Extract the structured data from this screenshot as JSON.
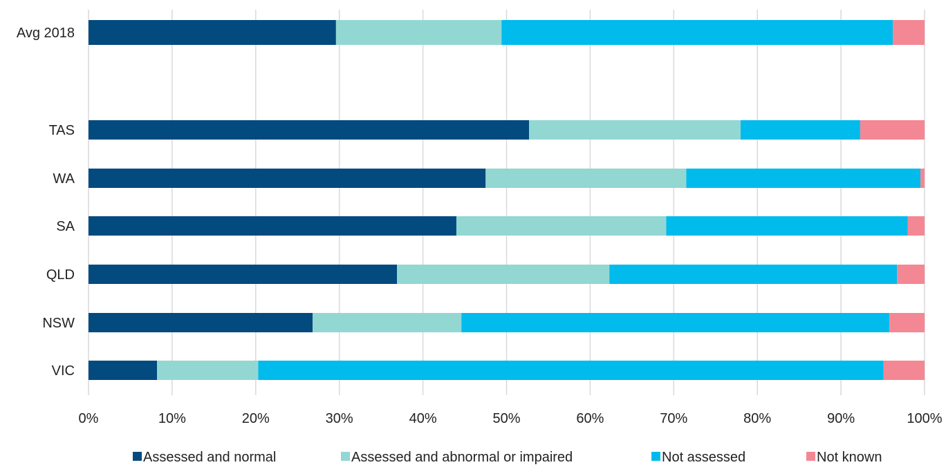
{
  "chart_data": {
    "type": "bar",
    "orientation": "horizontal",
    "stacked": "percent",
    "title": "",
    "xlabel": "",
    "ylabel": "",
    "xlim": [
      0,
      100
    ],
    "x_ticks": [
      "0%",
      "10%",
      "20%",
      "30%",
      "40%",
      "50%",
      "60%",
      "70%",
      "80%",
      "90%",
      "100%"
    ],
    "grid": "vertical",
    "legend_position": "bottom",
    "categories": [
      "Avg 2018",
      "TAS",
      "WA",
      "SA",
      "QLD",
      "NSW",
      "VIC"
    ],
    "series": [
      {
        "name": "Assessed and normal",
        "color": "#034a7f",
        "values": [
          29.6,
          52.7,
          47.5,
          44.0,
          36.9,
          26.8,
          8.2
        ]
      },
      {
        "name": "Assessed and abnormal or impaired",
        "color": "#93d7d3",
        "values": [
          19.8,
          25.3,
          24.0,
          25.1,
          25.4,
          17.8,
          12.1
        ]
      },
      {
        "name": "Not assessed",
        "color": "#00bbec",
        "values": [
          46.8,
          14.3,
          28.0,
          28.9,
          34.4,
          51.2,
          74.8
        ]
      },
      {
        "name": "Not known",
        "color": "#f48794",
        "values": [
          3.8,
          7.7,
          0.5,
          2.0,
          3.3,
          4.2,
          4.9
        ]
      }
    ]
  }
}
